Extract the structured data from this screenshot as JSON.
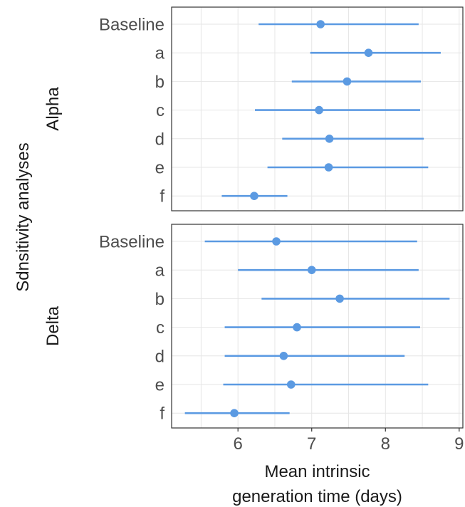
{
  "chart_data": {
    "type": "forest",
    "title": "",
    "ylabel": "Sdnsitivity analyses",
    "xlabel_lines": [
      "Mean intrinsic",
      "generation time (days)"
    ],
    "xlim": [
      5.1,
      9.05
    ],
    "xticks": [
      6,
      7,
      8,
      9
    ],
    "categories": [
      "Baseline",
      "a",
      "b",
      "c",
      "d",
      "e",
      "f"
    ],
    "series_color": "#5b9ae2",
    "grid": true,
    "panels": [
      {
        "label": "Alpha",
        "rows": [
          {
            "label": "Baseline",
            "estimate": 7.12,
            "lower": 6.28,
            "upper": 8.45
          },
          {
            "label": "a",
            "estimate": 7.77,
            "lower": 6.98,
            "upper": 8.75
          },
          {
            "label": "b",
            "estimate": 7.48,
            "lower": 6.73,
            "upper": 8.48
          },
          {
            "label": "c",
            "estimate": 7.1,
            "lower": 6.23,
            "upper": 8.47
          },
          {
            "label": "d",
            "estimate": 7.24,
            "lower": 6.6,
            "upper": 8.52
          },
          {
            "label": "e",
            "estimate": 7.23,
            "lower": 6.4,
            "upper": 8.58
          },
          {
            "label": "f",
            "estimate": 6.22,
            "lower": 5.78,
            "upper": 6.67
          }
        ]
      },
      {
        "label": "Delta",
        "rows": [
          {
            "label": "Baseline",
            "estimate": 6.52,
            "lower": 5.55,
            "upper": 8.43
          },
          {
            "label": "a",
            "estimate": 7.0,
            "lower": 6.0,
            "upper": 8.45
          },
          {
            "label": "b",
            "estimate": 7.38,
            "lower": 6.32,
            "upper": 8.87
          },
          {
            "label": "c",
            "estimate": 6.8,
            "lower": 5.82,
            "upper": 8.47
          },
          {
            "label": "d",
            "estimate": 6.62,
            "lower": 5.82,
            "upper": 8.26
          },
          {
            "label": "e",
            "estimate": 6.72,
            "lower": 5.8,
            "upper": 8.58
          },
          {
            "label": "f",
            "estimate": 5.95,
            "lower": 5.28,
            "upper": 6.7
          }
        ]
      }
    ]
  }
}
